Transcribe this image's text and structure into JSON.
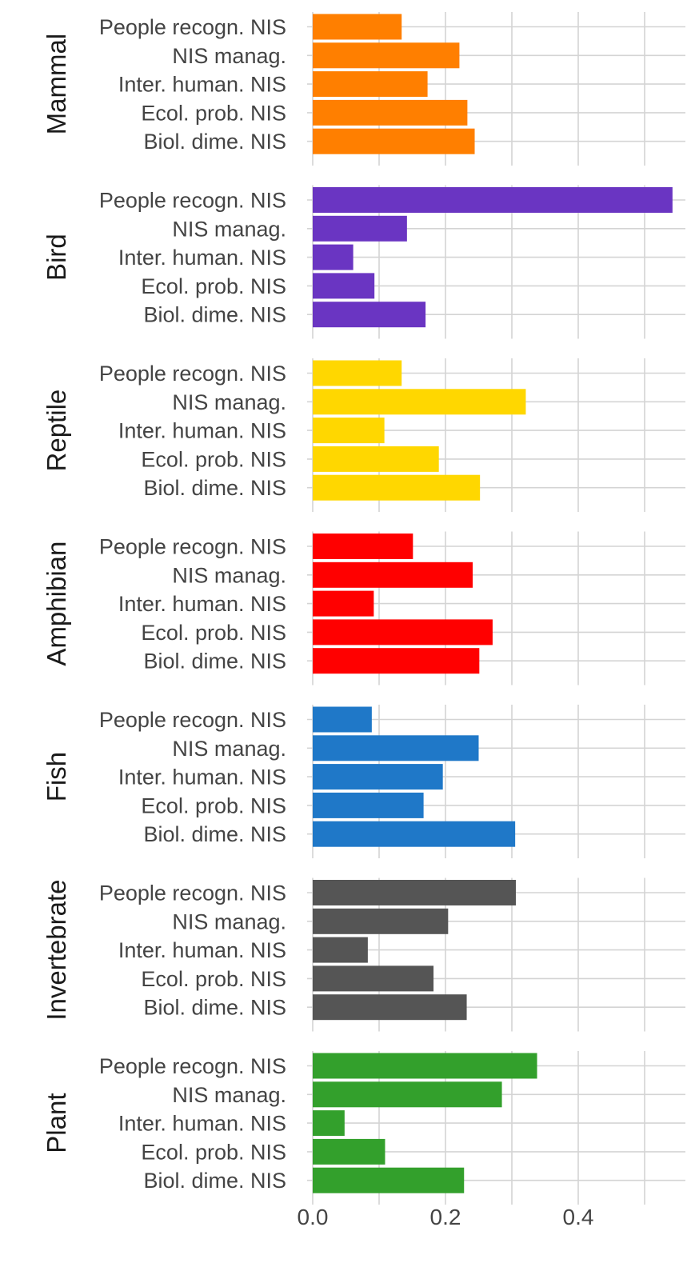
{
  "chart_data": {
    "type": "bar",
    "orientation": "horizontal",
    "categories": [
      "People recogn. NIS",
      "NIS manag.",
      "Inter. human. NIS",
      "Ecol. prob. NIS",
      "Biol. dime. NIS"
    ],
    "xlim": [
      0.0,
      0.565
    ],
    "x_ticks": [
      "0.0",
      "0.2",
      "0.4"
    ],
    "x_tick_values": [
      0.0,
      0.2,
      0.4
    ],
    "x_minor_grid": [
      0.1,
      0.3,
      0.5
    ],
    "grid": true,
    "legend": "none",
    "title": "",
    "xlabel": "",
    "ylabel": "",
    "panels": [
      {
        "name": "Mammal",
        "color": "#FF7F00",
        "values": [
          0.134,
          0.221,
          0.173,
          0.233,
          0.244
        ]
      },
      {
        "name": "Bird",
        "color": "#6A35C2",
        "values": [
          0.542,
          0.142,
          0.061,
          0.093,
          0.17
        ]
      },
      {
        "name": "Reptile",
        "color": "#FFD700",
        "values": [
          0.134,
          0.321,
          0.108,
          0.19,
          0.252
        ]
      },
      {
        "name": "Amphibian",
        "color": "#FF0000",
        "values": [
          0.151,
          0.241,
          0.092,
          0.271,
          0.251
        ]
      },
      {
        "name": "Fish",
        "color": "#1F78C8",
        "values": [
          0.089,
          0.25,
          0.196,
          0.167,
          0.305
        ]
      },
      {
        "name": "Invertebrate",
        "color": "#555555",
        "values": [
          0.306,
          0.204,
          0.083,
          0.182,
          0.232
        ]
      },
      {
        "name": "Plant",
        "color": "#33A02C",
        "values": [
          0.338,
          0.285,
          0.048,
          0.109,
          0.228
        ]
      }
    ]
  }
}
